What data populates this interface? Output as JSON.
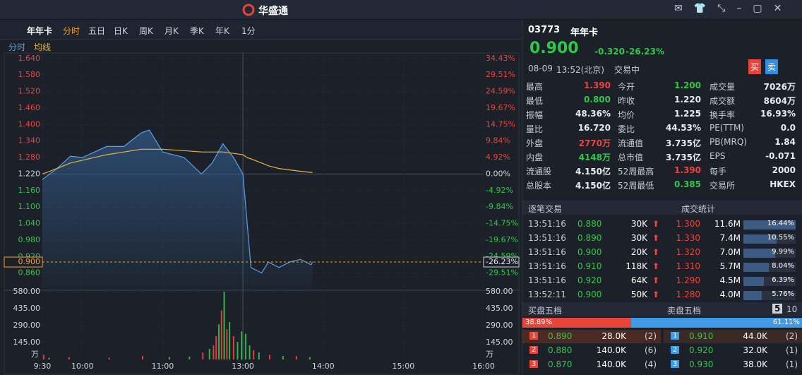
{
  "app": {
    "logo": "华盛通"
  },
  "toolbar": {
    "name": "年年卡",
    "tabs": [
      "分时",
      "五日",
      "日K",
      "周K",
      "月K",
      "季K",
      "年K"
    ],
    "interval": "1分"
  },
  "chart_data": {
    "type": "line",
    "x": [
      "9:30",
      "9:41",
      "9:51",
      "10:00",
      "10:18",
      "10:31",
      "10:44",
      "10:50",
      "11:00",
      "11:16",
      "11:29",
      "11:37",
      "11:45",
      "11:53",
      "12:00",
      "13:03",
      "13:06",
      "13:14",
      "13:19",
      "13:27",
      "13:35",
      "13:43",
      "13:51",
      "13:52"
    ],
    "series": [
      {
        "name": "分时",
        "color": "#5aa0e6",
        "values": [
          1.2,
          1.24,
          1.285,
          1.28,
          1.32,
          1.32,
          1.37,
          1.38,
          1.3,
          1.28,
          1.22,
          1.26,
          1.33,
          1.28,
          1.22,
          1.05,
          0.88,
          0.86,
          0.9,
          0.88,
          0.9,
          0.91,
          0.89,
          0.9
        ]
      },
      {
        "name": "均线",
        "color": "#e8b53a",
        "values": [
          1.22,
          1.24,
          1.26,
          1.27,
          1.29,
          1.3,
          1.31,
          1.31,
          1.31,
          1.305,
          1.3,
          1.3,
          1.3,
          1.295,
          1.29,
          1.28,
          1.275,
          1.26,
          1.25,
          1.24,
          1.235,
          1.23,
          1.226,
          1.225
        ]
      }
    ],
    "xlim": [
      "9:30",
      "16:00"
    ],
    "xticks": [
      "9:30",
      "10:00",
      "11:00",
      "13:00",
      "14:00",
      "15:00",
      "16:00"
    ],
    "ylim": [
      0.8,
      1.66
    ],
    "yticks": [
      {
        "value": 1.64,
        "label": "1.640"
      },
      {
        "value": 1.58,
        "label": "1.580"
      },
      {
        "value": 1.52,
        "label": "1.520"
      },
      {
        "value": 1.46,
        "label": "1.460"
      },
      {
        "value": 1.4,
        "label": "1.400"
      },
      {
        "value": 1.34,
        "label": "1.340"
      },
      {
        "value": 1.28,
        "label": "1.280"
      },
      {
        "value": 1.22,
        "label": "1.220"
      },
      {
        "value": 1.16,
        "label": "1.160"
      },
      {
        "value": 1.1,
        "label": "1.100"
      },
      {
        "value": 1.04,
        "label": "1.040"
      },
      {
        "value": 0.98,
        "label": "0.980"
      },
      {
        "value": 0.92,
        "label": "0.920"
      },
      {
        "value": 0.86,
        "label": "0.860"
      }
    ],
    "y2lim": [
      -34.43,
      36.07
    ],
    "y2ticks": [
      {
        "value": 34.43,
        "label": "34.43%"
      },
      {
        "value": 29.51,
        "label": "29.51%"
      },
      {
        "value": 24.59,
        "label": "24.59%"
      },
      {
        "value": 19.67,
        "label": "19.67%"
      },
      {
        "value": 14.75,
        "label": "14.75%"
      },
      {
        "value": 9.84,
        "label": "9.84%"
      },
      {
        "value": 4.92,
        "label": "4.92%"
      },
      {
        "value": 0,
        "label": "0.00%"
      },
      {
        "value": -4.92,
        "label": "-4.92%"
      },
      {
        "value": -9.84,
        "label": "-9.84%"
      },
      {
        "value": -14.75,
        "label": "-14.75%"
      },
      {
        "value": -19.67,
        "label": "-19.67%"
      },
      {
        "value": -24.59,
        "label": "-24.59%"
      },
      {
        "value": -29.51,
        "label": "-29.51%"
      }
    ],
    "last": {
      "value": 0.9,
      "label": "0.900",
      "pct": -26.23,
      "pct_label": "-26.23%"
    },
    "volume": {
      "x": [
        "9:31",
        "9:35",
        "9:50",
        "10:20",
        "10:45",
        "11:05",
        "11:20",
        "11:30",
        "11:35",
        "11:38",
        "11:40",
        "11:42",
        "11:44",
        "11:46",
        "11:48",
        "11:50",
        "11:53",
        "11:56",
        "11:59",
        "13:02",
        "13:05",
        "13:08",
        "13:12",
        "13:20",
        "13:30",
        "13:40",
        "13:50"
      ],
      "values": [
        40,
        15,
        20,
        15,
        30,
        20,
        25,
        60,
        90,
        120,
        200,
        300,
        420,
        580,
        260,
        320,
        200,
        150,
        240,
        220,
        120,
        80,
        60,
        40,
        30,
        30,
        20
      ],
      "colors": [
        "#e03c3c",
        "#2fb34a",
        "#e03c3c",
        "#e03c3c",
        "#e03c3c",
        "#2fb34a",
        "#2fb34a",
        "#e03c3c",
        "#2fb34a",
        "#e03c3c",
        "#e03c3c",
        "#2fb34a",
        "#e03c3c",
        "#2fb34a",
        "#e03c3c",
        "#2fb34a",
        "#e03c3c",
        "#2fb34a",
        "#2fb34a",
        "#2fb34a",
        "#2fb34a",
        "#e03c3c",
        "#2fb34a",
        "#e03c3c",
        "#2fb34a",
        "#e03c3c",
        "#2fb34a"
      ],
      "ylim": [
        0,
        580
      ],
      "yticks": [
        {
          "value": 580,
          "label": "580.00"
        },
        {
          "value": 435,
          "label": "435.00"
        },
        {
          "value": 290,
          "label": "290.00"
        },
        {
          "value": 145,
          "label": "145.00"
        }
      ],
      "unit": "万"
    }
  },
  "quote": {
    "code": "03773",
    "name": "年年卡",
    "price": "0.900",
    "change": "-0.320",
    "pct": "-26.23%",
    "date": "08-09",
    "time": "13:52(北京)",
    "status": "交易中",
    "buy": "买",
    "sell": "卖"
  },
  "stats": [
    [
      {
        "label": "最高",
        "value": "1.390",
        "color": "#f0433a"
      },
      {
        "label": "今开",
        "value": "1.200",
        "color": "#30c848"
      },
      {
        "label": "成交量",
        "value": "7026万",
        "color": "#e8eaee"
      }
    ],
    [
      {
        "label": "最低",
        "value": "0.800",
        "color": "#30c848"
      },
      {
        "label": "昨收",
        "value": "1.220",
        "color": "#e8eaee"
      },
      {
        "label": "成交额",
        "value": "8604万",
        "color": "#e8eaee"
      }
    ],
    [
      {
        "label": "振幅",
        "value": "48.36%",
        "color": "#e8eaee"
      },
      {
        "label": "均价",
        "value": "1.225",
        "color": "#e8eaee"
      },
      {
        "label": "换手率",
        "value": "16.93%",
        "color": "#e8eaee"
      }
    ],
    [
      {
        "label": "量比",
        "value": "16.720",
        "color": "#e8eaee"
      },
      {
        "label": "委比",
        "value": "44.53%",
        "color": "#e8eaee"
      },
      {
        "label": "PE(TTM)",
        "value": "0.0",
        "color": "#e8eaee"
      }
    ],
    [
      {
        "label": "外盘",
        "value": "2770万",
        "color": "#f0433a"
      },
      {
        "label": "流通值",
        "value": "3.735亿",
        "color": "#e8eaee"
      },
      {
        "label": "PB(MRQ)",
        "value": "1.84",
        "color": "#e8eaee"
      }
    ],
    [
      {
        "label": "内盘",
        "value": "4148万",
        "color": "#30c848"
      },
      {
        "label": "总市值",
        "value": "3.735亿",
        "color": "#e8eaee"
      },
      {
        "label": "EPS",
        "value": "-0.071",
        "color": "#e8eaee"
      }
    ],
    [
      {
        "label": "流通股",
        "value": "4.150亿",
        "color": "#e8eaee"
      },
      {
        "label": "52周最高",
        "value": "1.390",
        "color": "#f0433a"
      },
      {
        "label": "每手",
        "value": "2000",
        "color": "#e8eaee"
      }
    ],
    [
      {
        "label": "总股本",
        "value": "4.150亿",
        "color": "#e8eaee"
      },
      {
        "label": "52周最低",
        "value": "0.385",
        "color": "#30c848"
      },
      {
        "label": "交易所",
        "value": "HKEX",
        "color": "#e8eaee"
      }
    ]
  ],
  "trades": {
    "title": "逐笔交易",
    "stats_title": "成交统计",
    "rows": [
      [
        "13:51:16",
        "0.880",
        "30K",
        "1.300",
        "11.6M",
        "16.44%"
      ],
      [
        "13:51:16",
        "0.890",
        "30K",
        "1.330",
        "7.4M",
        "10.55%"
      ],
      [
        "13:51:16",
        "0.900",
        "20K",
        "1.320",
        "7.0M",
        "9.99%"
      ],
      [
        "13:51:16",
        "0.910",
        "118K",
        "1.310",
        "5.7M",
        "8.04%"
      ],
      [
        "13:51:16",
        "0.920",
        "64K",
        "1.290",
        "4.5M",
        "6.39%"
      ],
      [
        "13:52:11",
        "0.900",
        "50K",
        "1.280",
        "4.0M",
        "5.76%"
      ]
    ]
  },
  "book": {
    "bid_title": "买盘五档",
    "ask_title": "卖盘五档",
    "depth": [
      "5",
      "10"
    ],
    "bid_pct": "38.89%",
    "ask_pct": "61.11%",
    "bids": [
      [
        "1",
        "0.890",
        "28.0K",
        "(2)"
      ],
      [
        "2",
        "0.880",
        "140.0K",
        "(6)"
      ],
      [
        "3",
        "0.870",
        "140.0K",
        "(4)"
      ]
    ],
    "asks": [
      [
        "1",
        "0.910",
        "44.0K",
        "(2)"
      ],
      [
        "2",
        "0.920",
        "32.0K",
        "(1)"
      ],
      [
        "3",
        "0.930",
        "38.0K",
        "(1)"
      ]
    ]
  }
}
